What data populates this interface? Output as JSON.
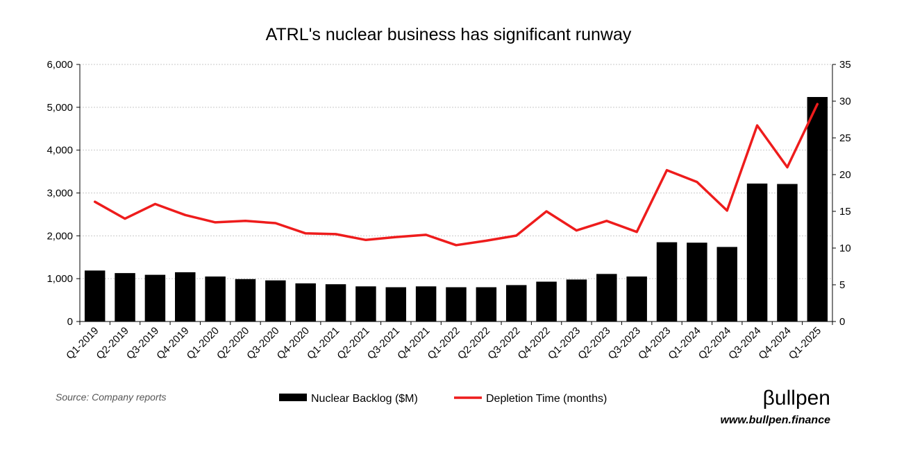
{
  "chart_data": {
    "type": "bar",
    "title": "ATRL's nuclear business has significant runway",
    "categories": [
      "Q1-2019",
      "Q2-2019",
      "Q3-2019",
      "Q4-2019",
      "Q1-2020",
      "Q2-2020",
      "Q3-2020",
      "Q4-2020",
      "Q1-2021",
      "Q2-2021",
      "Q3-2021",
      "Q4-2021",
      "Q1-2022",
      "Q2-2022",
      "Q3-2022",
      "Q4-2022",
      "Q1-2023",
      "Q2-2023",
      "Q3-2023",
      "Q4-2023",
      "Q1-2024",
      "Q2-2024",
      "Q3-2024",
      "Q4-2024",
      "Q1-2025"
    ],
    "series": [
      {
        "name": "Nuclear Backlog ($M)",
        "type": "bar",
        "axis": "left",
        "color": "#000000",
        "values": [
          1190,
          1130,
          1090,
          1150,
          1050,
          990,
          960,
          890,
          870,
          820,
          800,
          820,
          800,
          800,
          850,
          930,
          980,
          1110,
          1050,
          1850,
          1840,
          1740,
          3220,
          3210,
          5240
        ]
      },
      {
        "name": "Depletion Time (months)",
        "type": "line",
        "axis": "right",
        "color": "#ee1c1c",
        "values": [
          16.3,
          14.0,
          16.0,
          14.5,
          13.5,
          13.7,
          13.4,
          12.0,
          11.9,
          11.1,
          11.5,
          11.8,
          10.4,
          11.0,
          11.7,
          15.0,
          12.4,
          13.7,
          12.2,
          20.6,
          19.0,
          15.1,
          26.7,
          21.0,
          29.6
        ]
      }
    ],
    "y_left": {
      "ylim": [
        0,
        6000
      ],
      "ticks": [
        0,
        1000,
        2000,
        3000,
        4000,
        5000,
        6000
      ],
      "tick_labels": [
        "0",
        "1,000",
        "2,000",
        "3,000",
        "4,000",
        "5,000",
        "6,000"
      ]
    },
    "y_right": {
      "ylim": [
        0,
        35
      ],
      "ticks": [
        0,
        5,
        10,
        15,
        20,
        25,
        30,
        35
      ],
      "tick_labels": [
        "0",
        "5",
        "10",
        "15",
        "20",
        "25",
        "30",
        "35"
      ]
    },
    "grid": true,
    "legend": "bottom-center"
  },
  "footer": {
    "source": "Source: Company reports",
    "brand": "βullpen",
    "url": "www.bullpen.finance"
  }
}
